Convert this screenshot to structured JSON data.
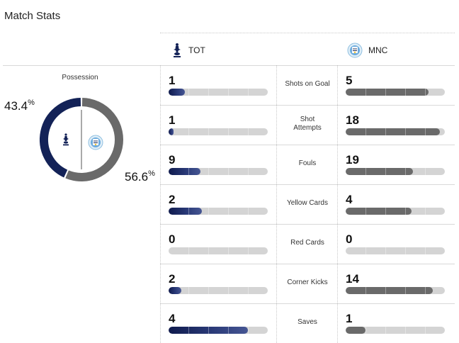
{
  "header": {
    "title": "Match Stats"
  },
  "teams": {
    "home": {
      "abbr": "TOT",
      "color": "#132257"
    },
    "away": {
      "abbr": "MNC",
      "color": "#6a6a6a"
    }
  },
  "possession": {
    "label": "Possession",
    "home_pct": "43.4",
    "away_pct": "56.6",
    "home_value": 43.4,
    "away_value": 56.6,
    "pct_sign": "%"
  },
  "stats": [
    {
      "label": "Shots on Goal",
      "home": "1",
      "away": "5"
    },
    {
      "label": "Shot Attempts",
      "home": "1",
      "away": "18"
    },
    {
      "label": "Fouls",
      "home": "9",
      "away": "19"
    },
    {
      "label": "Yellow Cards",
      "home": "2",
      "away": "4"
    },
    {
      "label": "Red Cards",
      "home": "0",
      "away": "0"
    },
    {
      "label": "Corner Kicks",
      "home": "2",
      "away": "14"
    },
    {
      "label": "Saves",
      "home": "4",
      "away": "1"
    }
  ]
}
